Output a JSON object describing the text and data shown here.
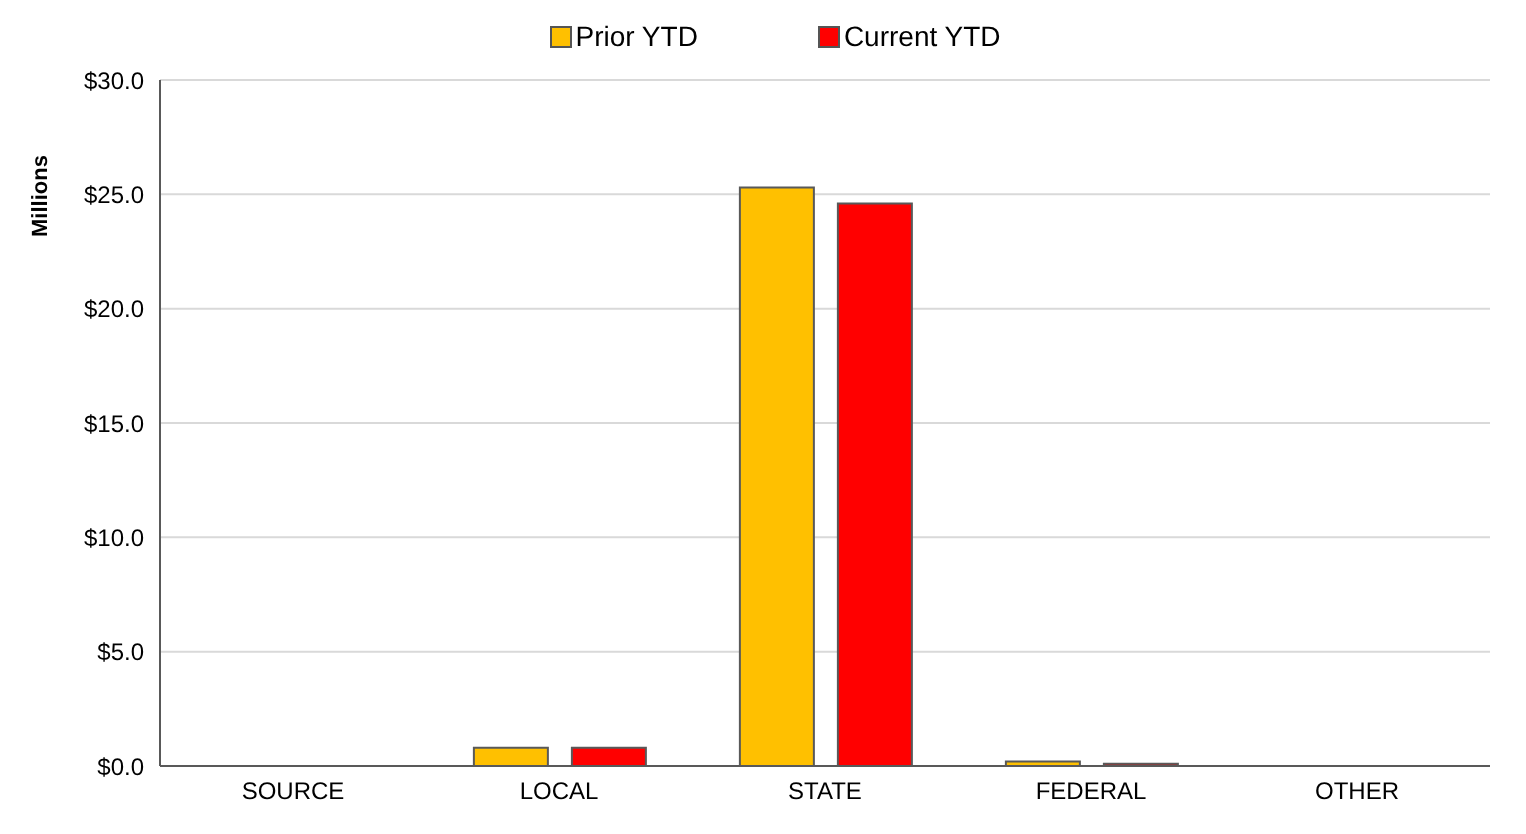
{
  "chart_data": {
    "type": "bar",
    "ylabel": "Millions",
    "categories": [
      "SOURCE",
      "LOCAL",
      "STATE",
      "FEDERAL",
      "OTHER"
    ],
    "series": [
      {
        "name": "Prior YTD",
        "color": "#ffc000",
        "values": [
          null,
          0.8,
          25.3,
          0.2,
          0
        ]
      },
      {
        "name": "Current YTD",
        "color": "#ff0000",
        "values": [
          null,
          0.8,
          24.6,
          0.1,
          0
        ]
      }
    ],
    "ylim": [
      0,
      30
    ],
    "yticks": [
      {
        "value": 0,
        "label": "$0.0"
      },
      {
        "value": 5,
        "label": "$5.0"
      },
      {
        "value": 10,
        "label": "$10.0"
      },
      {
        "value": 15,
        "label": "$15.0"
      },
      {
        "value": 20,
        "label": "$20.0"
      },
      {
        "value": 25,
        "label": "$25.0"
      },
      {
        "value": 30,
        "label": "$30.0"
      }
    ],
    "grid": "y",
    "legend": "top"
  }
}
